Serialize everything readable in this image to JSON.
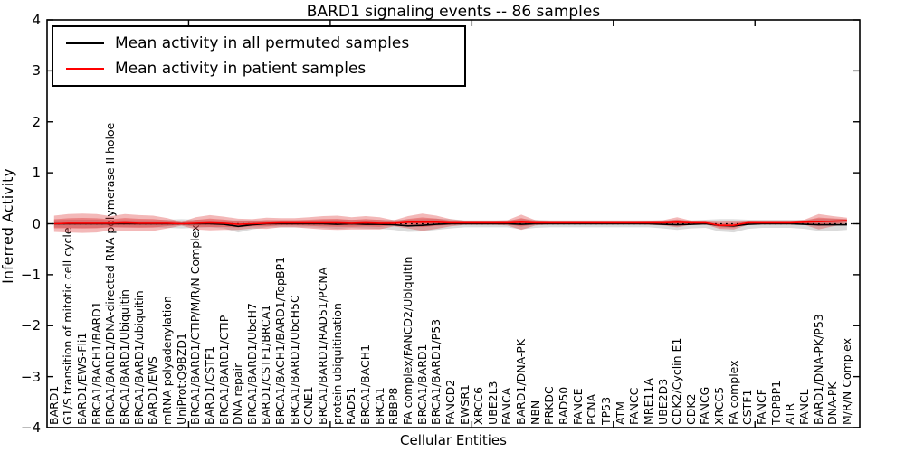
{
  "chart_data": {
    "type": "line",
    "title": "BARD1 signaling events -- 86 samples",
    "xlabel": "Cellular Entities",
    "ylabel": "Inferred Activity",
    "ylim": [
      -4,
      4
    ],
    "yticks": [
      4,
      3,
      2,
      1,
      0,
      -1,
      -2,
      -3,
      -4
    ],
    "xticks_numeric": [
      10,
      20,
      30,
      40,
      50
    ],
    "grid": false,
    "zero_line": true,
    "legend_position": "upper left",
    "legend": [
      {
        "label": "Mean activity in all permuted samples",
        "color": "#000000"
      },
      {
        "label": "Mean activity in patient samples",
        "color": "#ff0000"
      }
    ],
    "colors": {
      "permuted_line": "#000000",
      "patient_line": "#ff0000",
      "permuted_fill": "#909090",
      "patient_fill": "#dc2828"
    },
    "categories": [
      "BARD1",
      "G1/S transition of mitotic cell cycle",
      "BARD1/EWS-Fli1",
      "BRCA1/BACH1/BARD1",
      "BRCA1/BARD1/DNA-directed RNA polymerase II holoe",
      "BRCA1/BARD1/Ubiquitin",
      "BRCA1/BARD1/ubiquitin",
      "BARD1/EWS",
      "mRNA polyadenylation",
      "UniProt:Q9BZD1",
      "BRCA1/BARD1/CTIP/M/R/N Complex",
      "BARD1/CSTF1",
      "BRCA1/BARD1/CTIP",
      "DNA repair",
      "BRCA1/BARD1/UbcH7",
      "BARD1/CSTF1/BRCA1",
      "BRCA1/BACH1/BARD1/TopBP1",
      "BRCA1/BARD1/UbcH5C",
      "CCNE1",
      "BRCA1/BARD1/RAD51/PCNA",
      "protein ubiquitination",
      "RAD51",
      "BRCA1/BACH1",
      "BRCA1",
      "RBBP8",
      "FA complex/FANCD2/Ubiquitin",
      "BRCA1/BARD1",
      "BRCA1/BARD1/P53",
      "FANCD2",
      "EWSR1",
      "XRCC6",
      "UBE2L3",
      "FANCA",
      "BARD1/DNA-PK",
      "NBN",
      "PRKDC",
      "RAD50",
      "FANCE",
      "PCNA",
      "TP53",
      "ATM",
      "FANCC",
      "MRE11A",
      "UBE2D3",
      "CDK2/Cyclin E1",
      "CDK2",
      "FANCG",
      "XRCC5",
      "FA complex",
      "CSTF1",
      "FANCF",
      "TOPBP1",
      "ATR",
      "FANCL",
      "BARD1/DNA-PK/P53",
      "DNA-PK",
      "M/R/N Complex"
    ],
    "series": [
      {
        "name": "permuted_mean",
        "values": [
          0,
          0,
          0,
          0,
          0,
          0,
          0,
          0,
          0,
          0,
          0,
          0,
          -0.01,
          -0.05,
          -0.02,
          0,
          0,
          0,
          0,
          0,
          -0.01,
          0,
          -0.01,
          -0.01,
          -0.02,
          -0.04,
          -0.03,
          -0.01,
          0,
          0,
          0,
          0,
          0,
          -0.01,
          0,
          0,
          0,
          0,
          0,
          0,
          0,
          0,
          0,
          -0.01,
          -0.02,
          -0.01,
          0,
          -0.03,
          -0.04,
          -0.01,
          0,
          0,
          0,
          -0.01,
          -0.02,
          -0.02,
          -0.02
        ]
      },
      {
        "name": "patient_mean",
        "values": [
          0,
          0.01,
          0.01,
          0.01,
          0.01,
          0.02,
          0.01,
          0.01,
          0.01,
          0,
          0.01,
          0.02,
          0.01,
          -0.01,
          0,
          0.01,
          0.02,
          0.02,
          0.02,
          0.02,
          0.02,
          0.01,
          0.02,
          0.01,
          0.01,
          0.03,
          0.03,
          0.03,
          0.02,
          0.02,
          0.02,
          0.02,
          0.02,
          0.03,
          0.02,
          0.02,
          0.02,
          0.02,
          0.02,
          0.02,
          0.02,
          0.02,
          0.02,
          0.02,
          0.03,
          0.02,
          0.02,
          -0.03,
          -0.03,
          0.02,
          0.02,
          0.02,
          0.02,
          0.03,
          0.04,
          0.05,
          0.06
        ]
      },
      {
        "name": "permuted_band_halfwidth",
        "values": [
          0.07,
          0.08,
          0.08,
          0.08,
          0.07,
          0.07,
          0.07,
          0.07,
          0.08,
          0.09,
          0.08,
          0.07,
          0.08,
          0.12,
          0.09,
          0.07,
          0.07,
          0.07,
          0.07,
          0.08,
          0.09,
          0.08,
          0.08,
          0.09,
          0.1,
          0.12,
          0.12,
          0.11,
          0.09,
          0.07,
          0.07,
          0.07,
          0.07,
          0.1,
          0.08,
          0.07,
          0.07,
          0.07,
          0.07,
          0.07,
          0.07,
          0.07,
          0.07,
          0.08,
          0.1,
          0.08,
          0.08,
          0.12,
          0.13,
          0.09,
          0.08,
          0.08,
          0.08,
          0.09,
          0.12,
          0.12,
          0.1
        ]
      },
      {
        "name": "patient_band_halfwidth",
        "values": [
          0.16,
          0.18,
          0.19,
          0.18,
          0.14,
          0.17,
          0.16,
          0.15,
          0.1,
          0.035,
          0.12,
          0.15,
          0.13,
          0.11,
          0.09,
          0.11,
          0.09,
          0.09,
          0.11,
          0.13,
          0.14,
          0.12,
          0.13,
          0.12,
          0.06,
          0.12,
          0.17,
          0.13,
          0.07,
          0.04,
          0.04,
          0.04,
          0.05,
          0.15,
          0.05,
          0.03,
          0.03,
          0.03,
          0.03,
          0.03,
          0.03,
          0.03,
          0.04,
          0.05,
          0.1,
          0.04,
          0.03,
          0.07,
          0.08,
          0.04,
          0.03,
          0.03,
          0.03,
          0.05,
          0.15,
          0.1,
          0.06
        ]
      }
    ]
  }
}
